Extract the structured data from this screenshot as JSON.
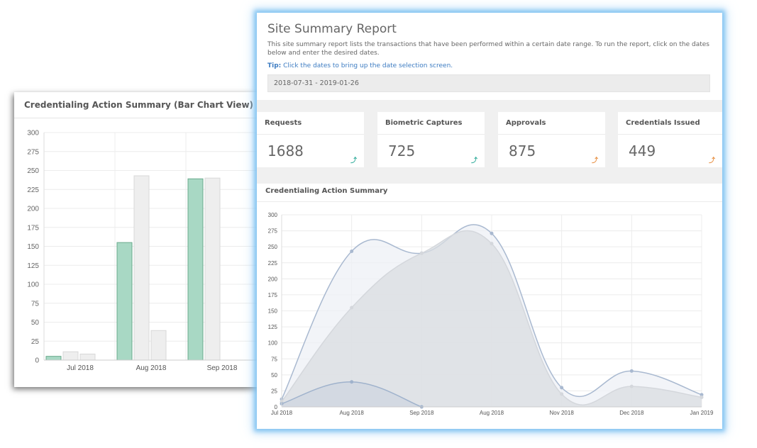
{
  "bar_card": {
    "title": "Credentialing Action Summary (Bar Chart View)"
  },
  "report": {
    "title": "Site Summary Report",
    "description": "This site summary report lists the transactions that have been performed within a certain date range. To run the report, click on the dates below and enter the desired dates.",
    "tip_label": "Tip:",
    "tip_text": " Click the dates to bring up the date selection screen.",
    "date_range": "2018-07-31 - 2019-01-26"
  },
  "stats": [
    {
      "label": "Requests",
      "value": "1688",
      "trend_color": "#3bb0a0"
    },
    {
      "label": "Biometric Captures",
      "value": "725",
      "trend_color": "#3bb0a0"
    },
    {
      "label": "Approvals",
      "value": "875",
      "trend_color": "#e8944a"
    },
    {
      "label": "Credentials Issued",
      "value": "449",
      "trend_color": "#e8944a"
    }
  ],
  "area_card": {
    "title": "Credentialing Action Summary"
  },
  "chart_data": [
    {
      "type": "bar",
      "title": "Credentialing Action Summary (Bar Chart View)",
      "categories": [
        "Jul 2018",
        "Aug 2018",
        "Sep 2018"
      ],
      "ylim": [
        0,
        300
      ],
      "yticks": [
        0,
        25,
        50,
        75,
        100,
        125,
        150,
        175,
        200,
        225,
        250,
        275,
        300
      ],
      "grid": true,
      "series": [
        {
          "values": [
            5,
            155,
            239
          ],
          "color": "#a8d8c4",
          "stroke": "#6aaa8c"
        },
        {
          "values": [
            11,
            243,
            240
          ],
          "color": "#eeeeee",
          "stroke": "#d8d8d8"
        },
        {
          "values": [
            8,
            39,
            0
          ],
          "color": "#eeeeee",
          "stroke": "#d8d8d8"
        }
      ]
    },
    {
      "type": "area",
      "title": "Credentialing Action Summary",
      "categories": [
        "Jul 2018",
        "Aug 2018",
        "Sep 2018",
        "Aug 2018",
        "Nov 2018",
        "Dec 2018",
        "Jan 2019"
      ],
      "ylim": [
        0,
        300
      ],
      "yticks": [
        0,
        25,
        50,
        75,
        100,
        125,
        150,
        175,
        200,
        225,
        250,
        275,
        300
      ],
      "grid": true,
      "series": [
        {
          "values": [
            12,
            243,
            240,
            271,
            30,
            56,
            19
          ],
          "color": "#eef0f5",
          "stroke": "#a9b9d0"
        },
        {
          "values": [
            8,
            155,
            240,
            255,
            20,
            32,
            15
          ],
          "color": "#d9dde2",
          "stroke": "#d4d7dc"
        },
        {
          "values": [
            5,
            39,
            0,
            null,
            null,
            null,
            null
          ],
          "color": "#cfd6e0",
          "stroke": "#9fb2cc"
        }
      ]
    }
  ]
}
